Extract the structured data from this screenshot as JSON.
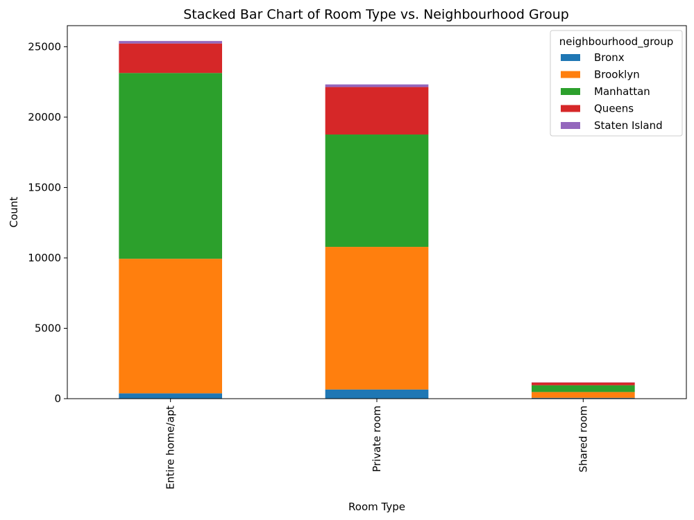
{
  "chart_data": {
    "type": "bar",
    "stacked": true,
    "title": "Stacked Bar Chart of Room Type vs. Neighbourhood Group",
    "xlabel": "Room Type",
    "ylabel": "Count",
    "categories": [
      "Entire home/apt",
      "Private room",
      "Shared room"
    ],
    "series": [
      {
        "name": "Bronx",
        "color": "#1f77b4",
        "values": [
          379,
          652,
          60
        ]
      },
      {
        "name": "Brooklyn",
        "color": "#ff7f0e",
        "values": [
          9559,
          10132,
          413
        ]
      },
      {
        "name": "Manhattan",
        "color": "#2ca02c",
        "values": [
          13199,
          7982,
          480
        ]
      },
      {
        "name": "Queens",
        "color": "#d62728",
        "values": [
          2096,
          3372,
          198
        ]
      },
      {
        "name": "Staten Island",
        "color": "#9467bd",
        "values": [
          176,
          188,
          9
        ]
      }
    ],
    "yticks": [
      0,
      5000,
      10000,
      15000,
      20000,
      25000
    ],
    "ylim": [
      0,
      26500
    ],
    "grid": false,
    "legend": {
      "title": "neighbourhood_group",
      "placement": "top-right"
    }
  }
}
